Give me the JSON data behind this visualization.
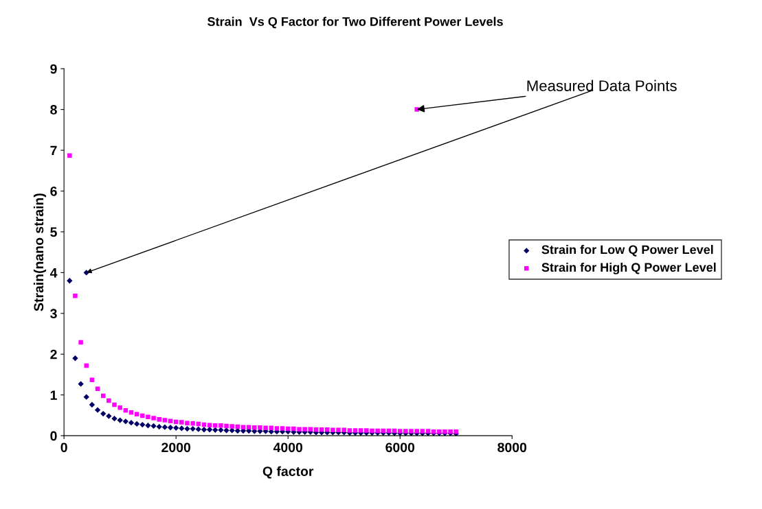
{
  "chart_data": {
    "type": "scatter",
    "title": "Strain  Vs Q Factor for Two Different Power Levels",
    "xlabel": "Q factor",
    "ylabel": "Strain(nano strain)",
    "xlim": [
      0,
      8000
    ],
    "xticks": [
      0,
      2000,
      4000,
      6000,
      8000
    ],
    "ylim": [
      0,
      9
    ],
    "yticks": [
      0,
      1,
      2,
      3,
      4,
      5,
      6,
      7,
      8,
      9
    ],
    "grid": false,
    "legend": "right",
    "annotations": [
      {
        "text": "Measured Data Points",
        "x": 6300,
        "y": 8.0
      }
    ],
    "series": [
      {
        "name": "Strain for Low Q Power Level",
        "color": "#000066",
        "marker": "diamond",
        "x": [
          100,
          200,
          300,
          400,
          500,
          600,
          700,
          800,
          900,
          1000,
          1100,
          1200,
          1300,
          1400,
          1500,
          1600,
          1700,
          1800,
          1900,
          2000,
          2100,
          2200,
          2300,
          2400,
          2500,
          2600,
          2700,
          2800,
          2900,
          3000,
          3100,
          3200,
          3300,
          3400,
          3500,
          3600,
          3700,
          3800,
          3900,
          4000,
          4100,
          4200,
          4300,
          4400,
          4500,
          4600,
          4700,
          4800,
          4900,
          5000,
          5100,
          5200,
          5300,
          5400,
          5500,
          5600,
          5700,
          5800,
          5900,
          6000,
          6100,
          6200,
          6300,
          6400,
          6500,
          6600,
          6700,
          6800,
          6900,
          7000,
          400
        ],
        "values": [
          3.8,
          1.9,
          1.27,
          0.95,
          0.76,
          0.63,
          0.54,
          0.48,
          0.42,
          0.38,
          0.35,
          0.32,
          0.29,
          0.27,
          0.25,
          0.24,
          0.22,
          0.21,
          0.2,
          0.19,
          0.18,
          0.17,
          0.17,
          0.16,
          0.15,
          0.15,
          0.14,
          0.14,
          0.13,
          0.13,
          0.12,
          0.12,
          0.12,
          0.11,
          0.11,
          0.11,
          0.1,
          0.1,
          0.1,
          0.1,
          0.09,
          0.09,
          0.09,
          0.09,
          0.08,
          0.08,
          0.08,
          0.08,
          0.08,
          0.08,
          0.07,
          0.07,
          0.07,
          0.07,
          0.07,
          0.07,
          0.07,
          0.07,
          0.06,
          0.06,
          0.06,
          0.06,
          0.06,
          0.06,
          0.06,
          0.06,
          0.06,
          0.06,
          0.06,
          0.05,
          4.0
        ]
      },
      {
        "name": "Strain for High Q Power Level",
        "color": "#ff00ff",
        "marker": "square",
        "x": [
          100,
          200,
          300,
          400,
          500,
          600,
          700,
          800,
          900,
          1000,
          1100,
          1200,
          1300,
          1400,
          1500,
          1600,
          1700,
          1800,
          1900,
          2000,
          2100,
          2200,
          2300,
          2400,
          2500,
          2600,
          2700,
          2800,
          2900,
          3000,
          3100,
          3200,
          3300,
          3400,
          3500,
          3600,
          3700,
          3800,
          3900,
          4000,
          4100,
          4200,
          4300,
          4400,
          4500,
          4600,
          4700,
          4800,
          4900,
          5000,
          5100,
          5200,
          5300,
          5400,
          5500,
          5600,
          5700,
          5800,
          5900,
          6000,
          6100,
          6200,
          6300,
          6400,
          6500,
          6600,
          6700,
          6800,
          6900,
          7000,
          6300
        ],
        "values": [
          6.87,
          3.43,
          2.29,
          1.72,
          1.37,
          1.15,
          0.98,
          0.86,
          0.76,
          0.69,
          0.62,
          0.57,
          0.53,
          0.49,
          0.46,
          0.43,
          0.4,
          0.38,
          0.36,
          0.34,
          0.33,
          0.31,
          0.3,
          0.29,
          0.27,
          0.26,
          0.25,
          0.25,
          0.24,
          0.23,
          0.22,
          0.21,
          0.21,
          0.2,
          0.2,
          0.19,
          0.19,
          0.18,
          0.18,
          0.17,
          0.17,
          0.16,
          0.16,
          0.16,
          0.15,
          0.15,
          0.15,
          0.14,
          0.14,
          0.14,
          0.13,
          0.13,
          0.13,
          0.13,
          0.12,
          0.12,
          0.12,
          0.12,
          0.12,
          0.11,
          0.11,
          0.11,
          0.11,
          0.11,
          0.11,
          0.1,
          0.1,
          0.1,
          0.1,
          0.1,
          8.0
        ]
      }
    ]
  }
}
